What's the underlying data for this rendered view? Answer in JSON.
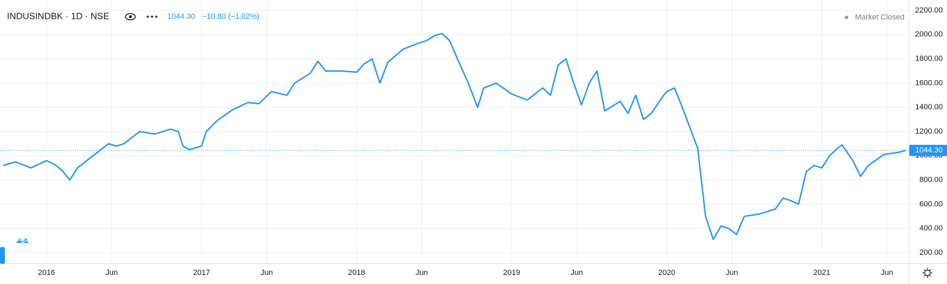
{
  "chart_data": {
    "type": "line",
    "title": "INDUSINDBK · 1D · NSE",
    "last_price": {
      "value": 1044.3,
      "label": "1044.30"
    },
    "change": "−10.80 (−1.02%)",
    "status": "Market Closed",
    "color": "#2196f3",
    "grid": true,
    "x": [
      2015.72,
      2015.8,
      2015.9,
      2016.0,
      2016.05,
      2016.1,
      2016.15,
      2016.2,
      2016.3,
      2016.4,
      2016.45,
      2016.5,
      2016.6,
      2016.7,
      2016.8,
      2016.85,
      2016.88,
      2016.92,
      2017.0,
      2017.03,
      2017.1,
      2017.2,
      2017.3,
      2017.37,
      2017.45,
      2017.55,
      2017.6,
      2017.7,
      2017.75,
      2017.8,
      2017.9,
      2018.0,
      2018.05,
      2018.1,
      2018.15,
      2018.2,
      2018.3,
      2018.4,
      2018.45,
      2018.5,
      2018.55,
      2018.6,
      2018.65,
      2018.72,
      2018.78,
      2018.82,
      2018.9,
      2019.0,
      2019.1,
      2019.2,
      2019.25,
      2019.3,
      2019.35,
      2019.4,
      2019.45,
      2019.5,
      2019.55,
      2019.6,
      2019.7,
      2019.75,
      2019.8,
      2019.85,
      2019.9,
      2019.98,
      2020.0,
      2020.05,
      2020.1,
      2020.15,
      2020.2,
      2020.25,
      2020.3,
      2020.35,
      2020.4,
      2020.45,
      2020.5,
      2020.6,
      2020.7,
      2020.75,
      2020.8,
      2020.85,
      2020.9,
      2020.95,
      2021.0,
      2021.05,
      2021.1,
      2021.13,
      2021.2,
      2021.25,
      2021.3,
      2021.4,
      2021.5,
      2021.54
    ],
    "values": [
      920,
      950,
      900,
      960,
      930,
      880,
      800,
      900,
      1000,
      1100,
      1080,
      1100,
      1200,
      1180,
      1220,
      1200,
      1080,
      1050,
      1080,
      1200,
      1290,
      1380,
      1440,
      1430,
      1530,
      1500,
      1600,
      1680,
      1780,
      1700,
      1700,
      1690,
      1760,
      1800,
      1600,
      1770,
      1880,
      1930,
      1950,
      1990,
      2010,
      1950,
      1800,
      1600,
      1400,
      1560,
      1600,
      1510,
      1460,
      1560,
      1500,
      1750,
      1800,
      1600,
      1420,
      1600,
      1700,
      1370,
      1450,
      1350,
      1500,
      1300,
      1350,
      1500,
      1530,
      1560,
      1400,
      1230,
      1060,
      500,
      310,
      420,
      400,
      350,
      500,
      520,
      560,
      650,
      630,
      600,
      870,
      920,
      900,
      1000,
      1060,
      1090,
      960,
      830,
      920,
      1010,
      1030,
      1044.3
    ],
    "xlim": [
      2015.7,
      2021.56
    ],
    "xticks": [
      {
        "value": 2016,
        "label": "2016"
      },
      {
        "value": 2016.42,
        "label": "Jun"
      },
      {
        "value": 2017,
        "label": "2017"
      },
      {
        "value": 2017.42,
        "label": "Jun"
      },
      {
        "value": 2018,
        "label": "2018"
      },
      {
        "value": 2018.42,
        "label": "Jun"
      },
      {
        "value": 2019,
        "label": "2019"
      },
      {
        "value": 2019.42,
        "label": "Jun"
      },
      {
        "value": 2020,
        "label": "2020"
      },
      {
        "value": 2020.42,
        "label": "Jun"
      },
      {
        "value": 2021,
        "label": "2021"
      },
      {
        "value": 2021.42,
        "label": "Jun"
      }
    ],
    "ylim": [
      114,
      2286
    ],
    "yticks": [
      {
        "value": 200,
        "label": "200.00"
      },
      {
        "value": 400,
        "label": "400.00"
      },
      {
        "value": 600,
        "label": "600.00"
      },
      {
        "value": 800,
        "label": "800.00"
      },
      {
        "value": 1000,
        "label": "1000.00"
      },
      {
        "value": 1200,
        "label": "1200.00"
      },
      {
        "value": 1400,
        "label": "1400.00"
      },
      {
        "value": 1600,
        "label": "1600.00"
      },
      {
        "value": 1800,
        "label": "1800.00"
      },
      {
        "value": 2000,
        "label": "2000.00"
      },
      {
        "value": 2200,
        "label": "2200.00"
      }
    ]
  }
}
